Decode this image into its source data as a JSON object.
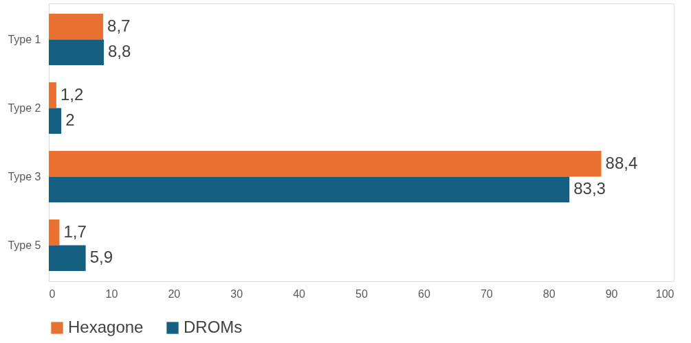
{
  "chart_data": {
    "type": "bar",
    "orientation": "horizontal",
    "categories": [
      "Type 1",
      "Type 2",
      "Type 3",
      "Type 5"
    ],
    "series": [
      {
        "name": "Hexagone",
        "color": "#e97132",
        "values": [
          8.7,
          1.2,
          88.4,
          1.7
        ],
        "value_labels": [
          "8,7",
          "1,2",
          "88,4",
          "1,7"
        ]
      },
      {
        "name": "DROMs",
        "color": "#156082",
        "values": [
          8.8,
          2,
          83.3,
          5.9
        ],
        "value_labels": [
          "8,8",
          "2",
          "83,3",
          "5,9"
        ]
      }
    ],
    "xlim": [
      0,
      100
    ],
    "xticks": [
      0,
      10,
      20,
      30,
      40,
      50,
      60,
      70,
      80,
      90,
      100
    ],
    "grid": false,
    "legend": "bottom"
  }
}
